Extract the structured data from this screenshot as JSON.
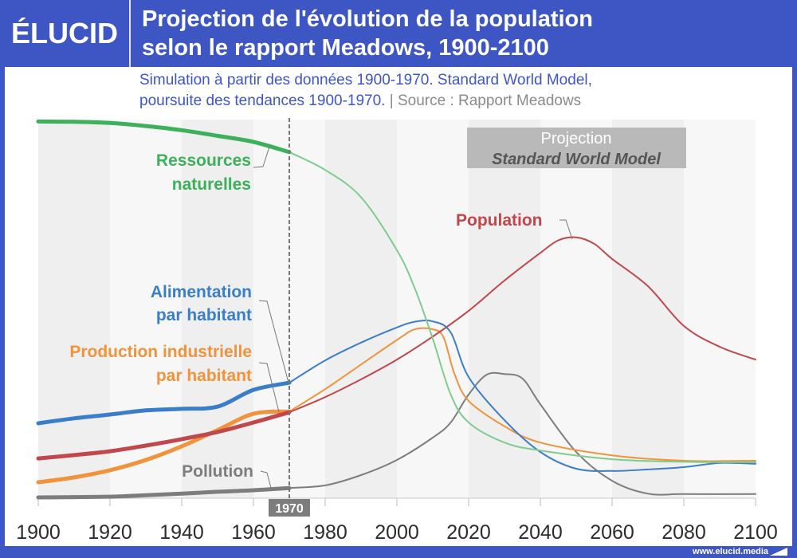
{
  "header": {
    "logo": "ÉLUCID",
    "title_line1": "Projection de l'évolution de la population",
    "title_line2": "selon le rapport Meadows, 1900-2100"
  },
  "subtitle": {
    "line1": "Simulation à partir des données 1900-1970. Standard World Model,",
    "line2_main": "poursuite des tendances 1900-1970.",
    "separator": " |  ",
    "source": "Source : Rapport Meadows"
  },
  "footer": {
    "url": "www.elucid.media"
  },
  "colors": {
    "brand": "#3d56c4",
    "resources": "#3cb05a",
    "resources_light": "#7fcc8f",
    "population": "#c0474b",
    "food": "#3a7ec9",
    "industry": "#f0933a",
    "pollution": "#7d7d7d"
  },
  "chart_data": {
    "type": "line",
    "title": "Projection de l'évolution de la population selon le rapport Meadows, 1900-2100",
    "xlabel": "",
    "ylabel": "",
    "xlim": [
      1900,
      2100
    ],
    "ylim": [
      0,
      100
    ],
    "x_ticks": [
      "1900",
      "1920",
      "1940",
      "1960",
      "1980",
      "2000",
      "2020",
      "2040",
      "2060",
      "2080",
      "2100"
    ],
    "grid": "alternating vertical bands every 20 years",
    "historical_end": 1970,
    "historical_marker_label": "1970",
    "projection_box": {
      "line1": "Projection",
      "line2": "Standard World Model"
    },
    "series": [
      {
        "key": "resources",
        "name": "Ressources naturelles",
        "label_lines": [
          "Ressources",
          "naturelles"
        ],
        "x": [
          1900,
          1910,
          1920,
          1930,
          1940,
          1950,
          1960,
          1970,
          1980,
          1990,
          2000,
          2005,
          2010,
          2015,
          2020,
          2030,
          2040,
          2060,
          2080,
          2100
        ],
        "y": [
          99.5,
          99.4,
          99.1,
          98.3,
          97.2,
          95.7,
          94.1,
          91.4,
          86.7,
          79.5,
          65.5,
          55.4,
          42.1,
          27.4,
          20.0,
          14.7,
          12.6,
          10.3,
          9.6,
          9.5
        ]
      },
      {
        "key": "population",
        "name": "Population",
        "label_lines": [
          "Population"
        ],
        "x": [
          1900,
          1910,
          1920,
          1930,
          1940,
          1950,
          1960,
          1970,
          1980,
          1990,
          2000,
          2010,
          2020,
          2030,
          2040,
          2045,
          2050,
          2055,
          2060,
          2070,
          2080,
          2090,
          2100
        ],
        "y": [
          10.5,
          11.4,
          12.4,
          13.9,
          15.6,
          17.5,
          20.0,
          22.7,
          26.7,
          31.4,
          36.6,
          42.7,
          49.5,
          57.5,
          64.8,
          68.1,
          68.9,
          67.2,
          63.2,
          56.0,
          45.5,
          40.0,
          36.6
        ]
      },
      {
        "key": "food",
        "name": "Alimentation par habitant",
        "label_lines": [
          "Alimentation",
          "par habitant"
        ],
        "x": [
          1900,
          1910,
          1920,
          1930,
          1940,
          1950,
          1960,
          1970,
          1980,
          1990,
          2000,
          2005,
          2010,
          2015,
          2020,
          2030,
          2040,
          2050,
          2060,
          2070,
          2080,
          2090,
          2100
        ],
        "y": [
          19.8,
          21.1,
          22.1,
          23.2,
          23.6,
          24.2,
          28.6,
          30.5,
          36.4,
          41.1,
          45.1,
          46.6,
          46.7,
          43.8,
          32.0,
          20.6,
          12.2,
          7.8,
          7.2,
          7.6,
          8.2,
          9.3,
          9.1
        ]
      },
      {
        "key": "industry",
        "name": "Production industrielle par habitant",
        "label_lines": [
          "Production industrielle",
          "par habitant"
        ],
        "x": [
          1900,
          1910,
          1920,
          1930,
          1940,
          1950,
          1960,
          1970,
          1980,
          1990,
          2000,
          2005,
          2010,
          2013,
          2016,
          2020,
          2030,
          2040,
          2060,
          2080,
          2100
        ],
        "y": [
          4.2,
          5.5,
          7.4,
          10.1,
          13.7,
          18.0,
          22.3,
          22.9,
          28.8,
          35.3,
          41.8,
          44.6,
          44.6,
          42.5,
          33.0,
          25.7,
          19.0,
          14.7,
          11.3,
          9.9,
          9.9
        ]
      },
      {
        "key": "pollution",
        "name": "Pollution",
        "label_lines": [
          "Pollution"
        ],
        "x": [
          1900,
          1920,
          1930,
          1940,
          1950,
          1960,
          1970,
          1980,
          1990,
          2000,
          2010,
          2015,
          2020,
          2025,
          2030,
          2035,
          2040,
          2050,
          2060,
          2070,
          2080,
          2100
        ],
        "y": [
          0.2,
          0.4,
          0.8,
          1.2,
          1.7,
          2.1,
          2.7,
          3.4,
          6.1,
          10.1,
          16.0,
          20.0,
          27.4,
          32.6,
          32.8,
          31.6,
          24.8,
          12.2,
          4.6,
          1.2,
          1.1,
          1.1
        ]
      }
    ]
  }
}
